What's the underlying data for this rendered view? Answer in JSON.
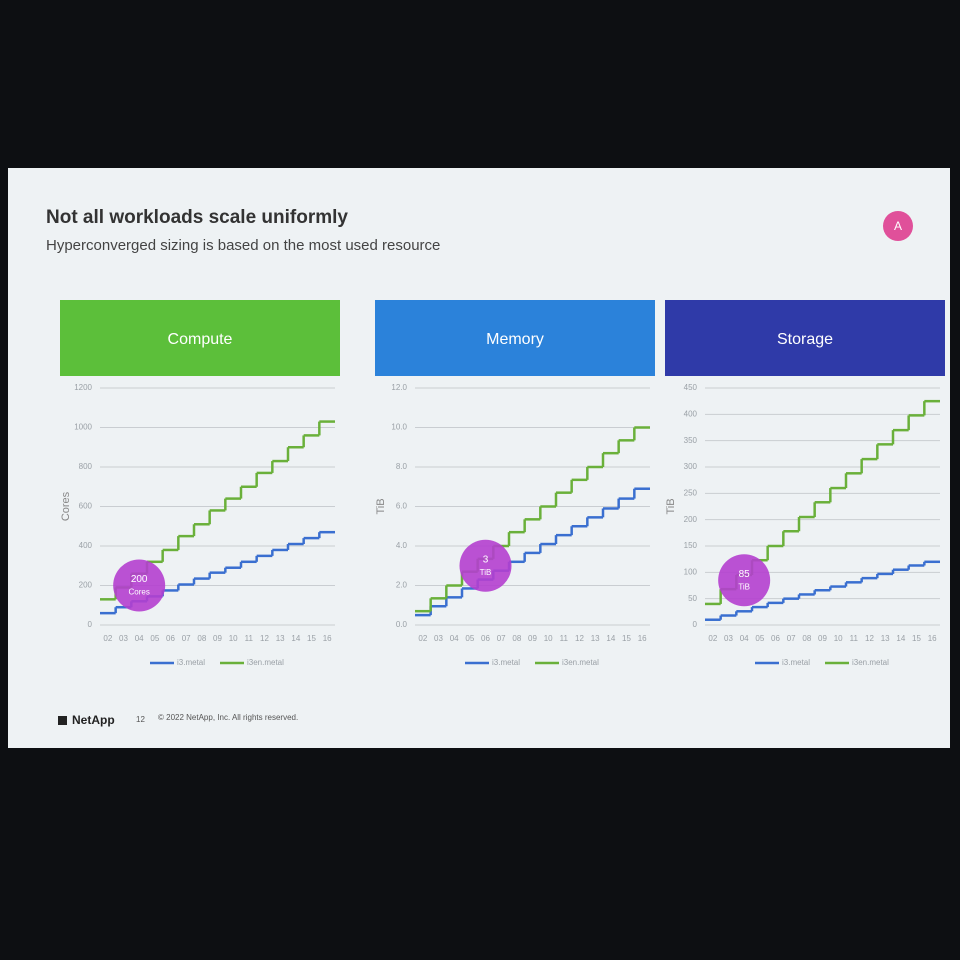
{
  "slide": {
    "title": "Not all workloads scale uniformly",
    "subtitle": "Hyperconverged sizing is based on the most used resource",
    "badge": "A",
    "logo": "NetApp",
    "page": 12,
    "copyright": "© 2022 NetApp, Inc. All rights reserved."
  },
  "chart_data": [
    {
      "type": "line",
      "step": true,
      "title": "Compute",
      "header_color": "#5cbf3a",
      "y_label": "Cores",
      "grid": true,
      "categories": [
        "02",
        "03",
        "04",
        "05",
        "06",
        "07",
        "08",
        "09",
        "10",
        "11",
        "12",
        "13",
        "14",
        "15",
        "16"
      ],
      "series": [
        {
          "name": "i3.metal",
          "color": "#3a6fd0",
          "values": [
            60,
            90,
            120,
            145,
            175,
            205,
            235,
            265,
            290,
            320,
            350,
            380,
            410,
            440,
            470
          ]
        },
        {
          "name": "i3en.metal",
          "color": "#6ab03a",
          "values": [
            130,
            190,
            260,
            320,
            380,
            450,
            510,
            580,
            640,
            700,
            770,
            830,
            900,
            960,
            1030
          ]
        }
      ],
      "ylim": [
        0,
        1200
      ],
      "yticks": [
        0,
        200,
        400,
        600,
        800,
        1000,
        1200
      ],
      "annotation": {
        "value": 200,
        "unit": "Cores",
        "color": "#b43fcf"
      }
    },
    {
      "type": "line",
      "step": true,
      "title": "Memory",
      "header_color": "#2b82da",
      "y_label": "TiB",
      "grid": true,
      "categories": [
        "02",
        "03",
        "04",
        "05",
        "06",
        "07",
        "08",
        "09",
        "10",
        "11",
        "12",
        "13",
        "14",
        "15",
        "16"
      ],
      "series": [
        {
          "name": "i3.metal",
          "color": "#3a6fd0",
          "values": [
            0.5,
            0.95,
            1.4,
            1.85,
            2.3,
            2.75,
            3.2,
            3.65,
            4.1,
            4.55,
            5.0,
            5.45,
            5.9,
            6.4,
            6.9
          ]
        },
        {
          "name": "i3en.metal",
          "color": "#6ab03a",
          "values": [
            0.7,
            1.35,
            2.0,
            2.7,
            3.35,
            4.0,
            4.7,
            5.35,
            6.0,
            6.7,
            7.35,
            8.0,
            8.7,
            9.35,
            10.0
          ]
        }
      ],
      "ylim": [
        0,
        12
      ],
      "yticks": [
        {
          "value": 0,
          "label": "0.0"
        },
        {
          "value": 2,
          "label": "2.0"
        },
        {
          "value": 4,
          "label": "4.0"
        },
        {
          "value": 6,
          "label": "6.0"
        },
        {
          "value": 8,
          "label": "8.0"
        },
        {
          "value": 10,
          "label": "10.0"
        },
        {
          "value": 12,
          "label": "12.0"
        }
      ],
      "annotation": {
        "value": 3,
        "unit": "TiB",
        "color": "#b43fcf"
      }
    },
    {
      "type": "line",
      "step": true,
      "title": "Storage",
      "header_color": "#2f3aa8",
      "y_label": "TiB",
      "grid": true,
      "categories": [
        "02",
        "03",
        "04",
        "05",
        "06",
        "07",
        "08",
        "09",
        "10",
        "11",
        "12",
        "13",
        "14",
        "15",
        "16"
      ],
      "series": [
        {
          "name": "i3.metal",
          "color": "#3a6fd0",
          "values": [
            10,
            18,
            26,
            34,
            42,
            50,
            58,
            66,
            73,
            81,
            89,
            97,
            105,
            113,
            120
          ]
        },
        {
          "name": "i3en.metal",
          "color": "#6ab03a",
          "values": [
            40,
            68,
            95,
            123,
            150,
            178,
            205,
            233,
            260,
            288,
            315,
            343,
            370,
            398,
            425
          ]
        }
      ],
      "ylim": [
        0,
        450
      ],
      "yticks": [
        0,
        50,
        100,
        150,
        200,
        250,
        300,
        350,
        400,
        450
      ],
      "annotation": {
        "value": 85,
        "unit": "TiB",
        "color": "#b43fcf"
      }
    }
  ]
}
